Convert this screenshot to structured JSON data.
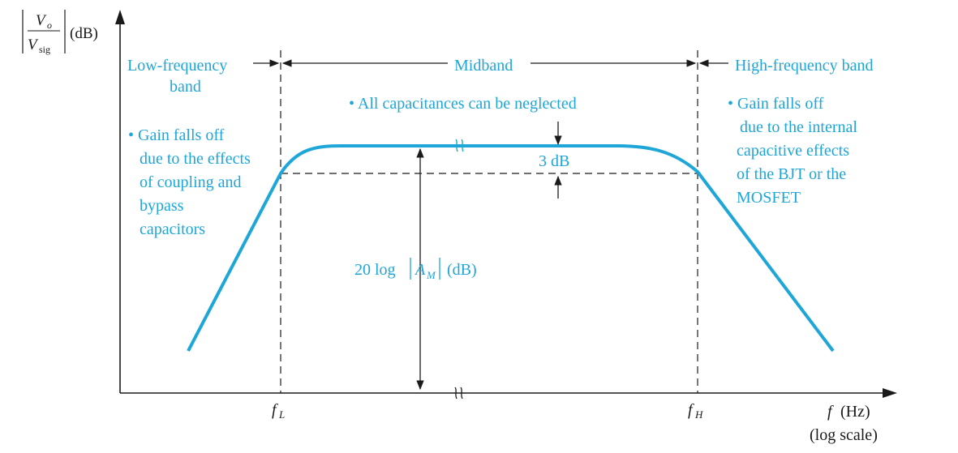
{
  "colors": {
    "accent": "#1ea6d8",
    "ink": "#1a1a1a"
  },
  "y_axis": {
    "numerator": "V",
    "numerator_sub": "o",
    "denominator": "V",
    "denominator_sub": "sig",
    "unit": "(dB)"
  },
  "x_axis": {
    "label_f": "f",
    "label_unit": "(Hz)",
    "scale_note": "(log scale)",
    "fL": "f",
    "fL_sub": "L",
    "fH": "f",
    "fH_sub": "H"
  },
  "bands": {
    "low_line1": "Low-frequency",
    "low_line2": "band",
    "mid": "Midband",
    "high": "High-frequency band"
  },
  "notes": {
    "mid": "• All capacitances can be neglected",
    "low": [
      "• Gain falls off",
      "due to the effects",
      "of coupling and",
      "bypass",
      "capacitors"
    ],
    "high": [
      "• Gain falls off",
      "due to the internal",
      "capacitive effects",
      "of the BJT or the",
      "MOSFET"
    ]
  },
  "annotations": {
    "three_db": "3 dB",
    "am_prefix": "20 log",
    "am_A": "A",
    "am_sub": "M",
    "am_suffix": "(dB)"
  }
}
